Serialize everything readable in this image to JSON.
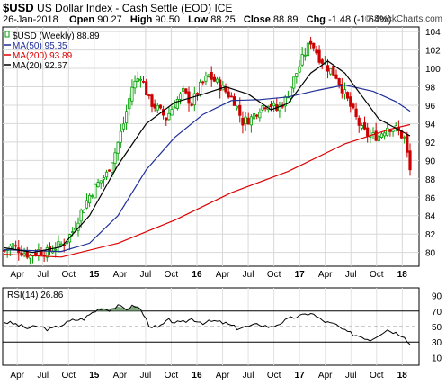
{
  "header": {
    "symbol": "$USD",
    "name": "US Dollar Index - Cash Settle (EOD)",
    "exchange": "ICE",
    "date": "26-Jan-2018",
    "open_label": "Open",
    "open": "90.27",
    "high_label": "High",
    "high": "90.50",
    "low_label": "Low",
    "low": "88.25",
    "close_label": "Close",
    "close": "88.89",
    "chg_label": "Chg",
    "chg": "-1.48 (-1.64%)",
    "copyright": "© StockCharts.com"
  },
  "legend": {
    "main": "$USD (Weekly) 88.89",
    "ma50": "MA(50) 95.35",
    "ma200": "MA(200) 93.89",
    "ma20": "MA(20) 92.67"
  },
  "rsi_label": "RSI(14) 26.86",
  "colors": {
    "up": "#00a000",
    "down": "#cc0000",
    "ma50": "#1f2f9a",
    "ma200": "#dd0000",
    "ma20": "#000000",
    "rsi_fill": "#6a9a6a"
  },
  "chart_data": [
    {
      "type": "candlestick",
      "title": "$USD (Weekly)",
      "x_tick_labels": [
        "Apr",
        "Jul",
        "Oct",
        "15",
        "Apr",
        "Jul",
        "Oct",
        "16",
        "Apr",
        "Jul",
        "Oct",
        "17",
        "Apr",
        "Jul",
        "Oct",
        "18"
      ],
      "ylim": [
        78.5,
        104.5
      ],
      "y_ticks": [
        80,
        82,
        84,
        86,
        88,
        90,
        92,
        94,
        96,
        98,
        100,
        102,
        104
      ],
      "close_series": [
        {
          "t": 0,
          "v": 80.2
        },
        {
          "t": 3,
          "v": 80.8
        },
        {
          "t": 6,
          "v": 80.1
        },
        {
          "t": 9,
          "v": 79.7
        },
        {
          "t": 12,
          "v": 80.2
        },
        {
          "t": 15,
          "v": 80.0
        },
        {
          "t": 18,
          "v": 80.6
        },
        {
          "t": 21,
          "v": 81.0
        },
        {
          "t": 24,
          "v": 82.3
        },
        {
          "t": 27,
          "v": 84.4
        },
        {
          "t": 30,
          "v": 86.2
        },
        {
          "t": 33,
          "v": 87.5
        },
        {
          "t": 36,
          "v": 88.5
        },
        {
          "t": 39,
          "v": 90.9
        },
        {
          "t": 42,
          "v": 94.0
        },
        {
          "t": 45,
          "v": 98.0
        },
        {
          "t": 48,
          "v": 99.3
        },
        {
          "t": 51,
          "v": 96.5
        },
        {
          "t": 54,
          "v": 95.6
        },
        {
          "t": 57,
          "v": 94.6
        },
        {
          "t": 60,
          "v": 96.2
        },
        {
          "t": 63,
          "v": 97.4
        },
        {
          "t": 66,
          "v": 96.2
        },
        {
          "t": 69,
          "v": 98.0
        },
        {
          "t": 72,
          "v": 99.2
        },
        {
          "t": 75,
          "v": 98.4
        },
        {
          "t": 78,
          "v": 97.5
        },
        {
          "t": 81,
          "v": 96.5
        },
        {
          "t": 84,
          "v": 94.2
        },
        {
          "t": 87,
          "v": 94.6
        },
        {
          "t": 90,
          "v": 95.7
        },
        {
          "t": 93,
          "v": 96.3
        },
        {
          "t": 96,
          "v": 95.5
        },
        {
          "t": 99,
          "v": 96.6
        },
        {
          "t": 102,
          "v": 98.8
        },
        {
          "t": 105,
          "v": 101.0
        },
        {
          "t": 108,
          "v": 103.0
        },
        {
          "t": 111,
          "v": 101.2
        },
        {
          "t": 114,
          "v": 100.1
        },
        {
          "t": 117,
          "v": 99.2
        },
        {
          "t": 120,
          "v": 97.2
        },
        {
          "t": 123,
          "v": 95.2
        },
        {
          "t": 126,
          "v": 93.3
        },
        {
          "t": 129,
          "v": 92.6
        },
        {
          "t": 132,
          "v": 92.7
        },
        {
          "t": 135,
          "v": 93.7
        },
        {
          "t": 138,
          "v": 93.4
        },
        {
          "t": 141,
          "v": 92.4
        },
        {
          "t": 143,
          "v": 88.9
        }
      ],
      "ma50": [
        {
          "t": 0,
          "v": 80.3
        },
        {
          "t": 20,
          "v": 80.1
        },
        {
          "t": 30,
          "v": 81.0
        },
        {
          "t": 40,
          "v": 84.0
        },
        {
          "t": 50,
          "v": 89.0
        },
        {
          "t": 60,
          "v": 92.5
        },
        {
          "t": 70,
          "v": 95.0
        },
        {
          "t": 80,
          "v": 96.5
        },
        {
          "t": 90,
          "v": 96.6
        },
        {
          "t": 100,
          "v": 96.9
        },
        {
          "t": 110,
          "v": 97.6
        },
        {
          "t": 120,
          "v": 98.2
        },
        {
          "t": 130,
          "v": 97.5
        },
        {
          "t": 138,
          "v": 96.4
        },
        {
          "t": 143,
          "v": 95.35
        }
      ],
      "ma200": [
        {
          "t": 0,
          "v": 79.8
        },
        {
          "t": 20,
          "v": 79.5
        },
        {
          "t": 40,
          "v": 81.0
        },
        {
          "t": 60,
          "v": 83.5
        },
        {
          "t": 80,
          "v": 86.5
        },
        {
          "t": 100,
          "v": 88.8
        },
        {
          "t": 120,
          "v": 91.8
        },
        {
          "t": 136,
          "v": 93.4
        },
        {
          "t": 143,
          "v": 93.89
        }
      ],
      "ma20": [
        {
          "t": 0,
          "v": 80.5
        },
        {
          "t": 10,
          "v": 80.0
        },
        {
          "t": 20,
          "v": 80.6
        },
        {
          "t": 30,
          "v": 84.0
        },
        {
          "t": 40,
          "v": 89.5
        },
        {
          "t": 50,
          "v": 94.0
        },
        {
          "t": 60,
          "v": 96.3
        },
        {
          "t": 70,
          "v": 97.2
        },
        {
          "t": 78,
          "v": 98.0
        },
        {
          "t": 86,
          "v": 97.2
        },
        {
          "t": 94,
          "v": 95.5
        },
        {
          "t": 100,
          "v": 96.2
        },
        {
          "t": 108,
          "v": 99.5
        },
        {
          "t": 114,
          "v": 100.8
        },
        {
          "t": 120,
          "v": 99.5
        },
        {
          "t": 126,
          "v": 97.0
        },
        {
          "t": 132,
          "v": 94.5
        },
        {
          "t": 138,
          "v": 93.5
        },
        {
          "t": 143,
          "v": 92.67
        }
      ]
    },
    {
      "type": "line",
      "title": "RSI(14)",
      "ylim": [
        0,
        100
      ],
      "y_ticks": [
        10,
        30,
        50,
        70,
        90
      ],
      "reference_lines": [
        30,
        70
      ],
      "values": [
        {
          "t": 0,
          "v": 56
        },
        {
          "t": 4,
          "v": 53
        },
        {
          "t": 8,
          "v": 48
        },
        {
          "t": 12,
          "v": 50
        },
        {
          "t": 16,
          "v": 46
        },
        {
          "t": 20,
          "v": 52
        },
        {
          "t": 24,
          "v": 58
        },
        {
          "t": 28,
          "v": 60
        },
        {
          "t": 31,
          "v": 68
        },
        {
          "t": 34,
          "v": 74
        },
        {
          "t": 37,
          "v": 72
        },
        {
          "t": 40,
          "v": 76
        },
        {
          "t": 43,
          "v": 73
        },
        {
          "t": 46,
          "v": 77
        },
        {
          "t": 48,
          "v": 72
        },
        {
          "t": 51,
          "v": 52
        },
        {
          "t": 54,
          "v": 48
        },
        {
          "t": 58,
          "v": 58
        },
        {
          "t": 62,
          "v": 54
        },
        {
          "t": 66,
          "v": 60
        },
        {
          "t": 70,
          "v": 55
        },
        {
          "t": 74,
          "v": 57
        },
        {
          "t": 78,
          "v": 54
        },
        {
          "t": 82,
          "v": 48
        },
        {
          "t": 86,
          "v": 50
        },
        {
          "t": 90,
          "v": 53
        },
        {
          "t": 94,
          "v": 49
        },
        {
          "t": 98,
          "v": 56
        },
        {
          "t": 102,
          "v": 62
        },
        {
          "t": 105,
          "v": 64
        },
        {
          "t": 108,
          "v": 68
        },
        {
          "t": 111,
          "v": 60
        },
        {
          "t": 114,
          "v": 55
        },
        {
          "t": 117,
          "v": 52
        },
        {
          "t": 120,
          "v": 44
        },
        {
          "t": 123,
          "v": 40
        },
        {
          "t": 126,
          "v": 37
        },
        {
          "t": 129,
          "v": 33
        },
        {
          "t": 132,
          "v": 40
        },
        {
          "t": 135,
          "v": 46
        },
        {
          "t": 138,
          "v": 42
        },
        {
          "t": 141,
          "v": 38
        },
        {
          "t": 143,
          "v": 26.86
        }
      ]
    }
  ]
}
